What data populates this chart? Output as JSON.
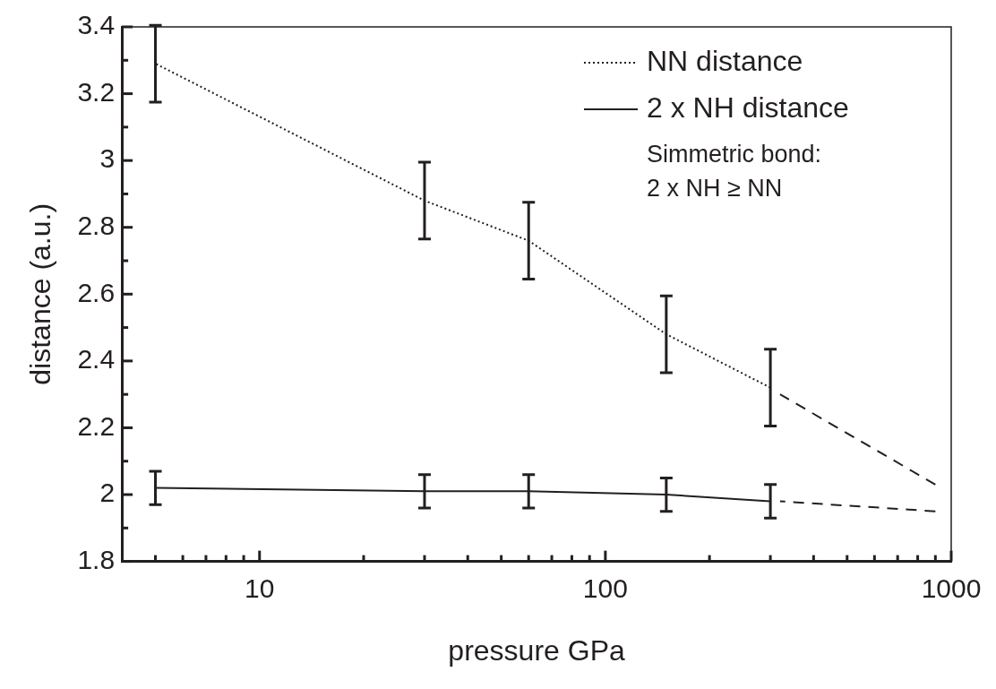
{
  "chart_data": {
    "type": "line",
    "xlabel": "pressure GPa",
    "ylabel": "distance (a.u.)",
    "log": "x",
    "xlim": [
      4,
      1000
    ],
    "xticks": [
      {
        "value": 5,
        "label": null
      },
      {
        "value": 6,
        "label": null
      },
      {
        "value": 7,
        "label": null
      },
      {
        "value": 8,
        "label": null
      },
      {
        "value": 9,
        "label": null
      },
      10,
      {
        "value": 20,
        "label": null
      },
      {
        "value": 30,
        "label": null
      },
      {
        "value": 40,
        "label": null
      },
      {
        "value": 50,
        "label": null
      },
      {
        "value": 60,
        "label": null
      },
      {
        "value": 70,
        "label": null
      },
      {
        "value": 80,
        "label": null
      },
      {
        "value": 90,
        "label": null
      },
      100,
      {
        "value": 200,
        "label": null
      },
      {
        "value": 300,
        "label": null
      },
      {
        "value": 400,
        "label": null
      },
      {
        "value": 500,
        "label": null
      },
      {
        "value": 600,
        "label": null
      },
      {
        "value": 700,
        "label": null
      },
      {
        "value": 800,
        "label": null
      },
      {
        "value": 900,
        "label": null
      },
      1000
    ],
    "ylim": [
      1.8,
      3.4
    ],
    "yticks": [
      1.8,
      {
        "value": 1.9,
        "label": null
      },
      2,
      {
        "value": 2.1,
        "label": null
      },
      2.2,
      {
        "value": 2.3,
        "label": null
      },
      2.4,
      {
        "value": 2.5,
        "label": null
      },
      2.6,
      {
        "value": 2.7,
        "label": null
      },
      2.8,
      {
        "value": 2.9,
        "label": null
      },
      3,
      {
        "value": 3.1,
        "label": null
      },
      3.2,
      {
        "value": 3.3,
        "label": null
      },
      3.4
    ],
    "grid": false,
    "legend": "top right",
    "marker": "none",
    "series": [
      {
        "name": "NN distance",
        "color": "#231f20",
        "line_style": "dotted",
        "x": [
          5,
          30,
          60,
          150,
          300
        ],
        "values": [
          3.29,
          2.88,
          2.76,
          2.48,
          2.32
        ],
        "errors": [
          0.115,
          0.115,
          0.115,
          0.115,
          0.115
        ]
      },
      {
        "name": "2 x NH distance",
        "color": "#231f20",
        "line_style": "solid",
        "x": [
          5,
          30,
          60,
          150,
          300
        ],
        "values": [
          2.02,
          2.01,
          2.01,
          2.0,
          1.98
        ],
        "errors": [
          0.05,
          0.05,
          0.05,
          0.05,
          0.05
        ]
      },
      {
        "color": "#231f20",
        "line_style": "dashed",
        "x": [
          320,
          900
        ],
        "values": [
          2.3,
          2.03
        ]
      },
      {
        "color": "#231f20",
        "line_style": "dashed",
        "x": [
          320,
          900
        ],
        "values": [
          1.98,
          1.95
        ]
      }
    ],
    "annotations": [
      "Simmetric bond:",
      "2 x NH ≥ NN"
    ]
  }
}
